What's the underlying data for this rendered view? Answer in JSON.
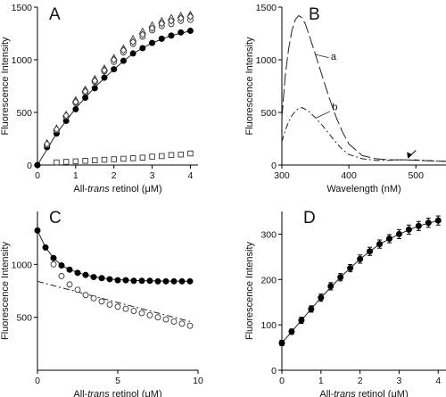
{
  "chart_data": [
    {
      "panel": "A",
      "type": "scatter",
      "xlabel_prefix": "All-",
      "xlabel_italic": "trans",
      "xlabel_suffix": " retinol (μM)",
      "ylabel": "Fluorescence Intensity",
      "xlim": [
        0,
        4.2
      ],
      "ylim": [
        0,
        1500
      ],
      "xticks": [
        0,
        1,
        2,
        3,
        4
      ],
      "yticks": [
        0,
        500,
        1000,
        1500
      ],
      "series": [
        {
          "marker": "filled-circle",
          "x": [
            0,
            0.25,
            0.5,
            0.75,
            1.0,
            1.25,
            1.5,
            1.75,
            2.0,
            2.25,
            2.5,
            2.75,
            3.0,
            3.25,
            3.5,
            3.75,
            4.0
          ],
          "values": [
            0,
            170,
            300,
            420,
            530,
            640,
            730,
            830,
            910,
            990,
            1060,
            1110,
            1160,
            1200,
            1230,
            1260,
            1275
          ]
        },
        {
          "marker": "open-circle",
          "x": [
            0.25,
            0.5,
            0.75,
            1.0,
            1.25,
            1.5,
            1.75,
            2.0,
            2.25,
            2.5,
            2.75,
            3.0,
            3.25,
            3.5,
            3.75,
            4.0
          ],
          "values": [
            190,
            330,
            460,
            590,
            690,
            790,
            890,
            980,
            1070,
            1150,
            1220,
            1280,
            1320,
            1340,
            1370,
            1380
          ]
        },
        {
          "marker": "open-triangle",
          "x": [
            0.25,
            0.5,
            0.75,
            1.0,
            1.25,
            1.5,
            1.75,
            2.0,
            2.25,
            2.5,
            2.75,
            3.0,
            3.25,
            3.5,
            3.75,
            4.0
          ],
          "values": [
            210,
            350,
            480,
            620,
            720,
            820,
            920,
            1020,
            1110,
            1200,
            1270,
            1330,
            1370,
            1400,
            1420,
            1430
          ]
        },
        {
          "marker": "open-diamond",
          "x": [
            0.25,
            0.5,
            0.75,
            1.0,
            1.25,
            1.5,
            1.75,
            2.0,
            2.25,
            2.5,
            2.75,
            3.0,
            3.25,
            3.5,
            3.75,
            4.0
          ],
          "values": [
            200,
            340,
            470,
            600,
            700,
            800,
            900,
            1000,
            1090,
            1170,
            1240,
            1300,
            1345,
            1370,
            1395,
            1410
          ]
        },
        {
          "marker": "open-square",
          "x": [
            0.5,
            0.75,
            1.0,
            1.25,
            1.5,
            1.75,
            2.0,
            2.25,
            2.5,
            2.75,
            3.0,
            3.25,
            3.5,
            3.75,
            4.0
          ],
          "values": [
            25,
            30,
            35,
            40,
            45,
            50,
            55,
            60,
            65,
            70,
            80,
            85,
            95,
            100,
            110
          ]
        }
      ],
      "fit": {
        "style": "solid",
        "x": [
          0,
          0.5,
          1,
          1.5,
          2,
          2.5,
          3,
          3.5,
          4
        ],
        "values": [
          0,
          300,
          540,
          740,
          910,
          1060,
          1160,
          1230,
          1275
        ]
      }
    },
    {
      "panel": "B",
      "type": "line",
      "xlabel": "Wavelength (nM)",
      "ylabel": "Fluorescence Intensity",
      "xlim": [
        300,
        545
      ],
      "ylim": [
        0,
        1500
      ],
      "xticks": [
        300,
        400,
        500
      ],
      "yticks": [
        0,
        500,
        1000,
        1500
      ],
      "series": [
        {
          "name": "a",
          "style": "long-dash",
          "x": [
            300,
            305,
            310,
            315,
            320,
            325,
            330,
            335,
            340,
            345,
            350,
            360,
            370,
            380,
            390,
            400,
            420,
            440,
            460,
            480,
            500,
            520,
            545
          ],
          "values": [
            450,
            850,
            1100,
            1280,
            1380,
            1420,
            1400,
            1340,
            1250,
            1150,
            1050,
            850,
            650,
            470,
            320,
            200,
            90,
            60,
            50,
            50,
            45,
            40,
            35
          ]
        },
        {
          "name": "b",
          "style": "dash-dot",
          "x": [
            300,
            305,
            310,
            315,
            320,
            325,
            330,
            335,
            340,
            345,
            350,
            360,
            370,
            380,
            390,
            400,
            420,
            440,
            460,
            480,
            500,
            520,
            545
          ],
          "values": [
            220,
            330,
            410,
            470,
            510,
            540,
            545,
            530,
            510,
            480,
            450,
            380,
            300,
            220,
            150,
            100,
            60,
            45,
            45,
            50,
            48,
            42,
            35
          ]
        }
      ]
    },
    {
      "panel": "C",
      "type": "scatter",
      "xlabel_prefix": "All-",
      "xlabel_italic": "trans",
      "xlabel_suffix": " retinol (μM)",
      "ylabel": "Fluorescence Intensity",
      "xlim": [
        0,
        10
      ],
      "ylim": [
        0,
        1500
      ],
      "xticks": [
        0,
        5,
        10
      ],
      "yticks": [
        500,
        1000
      ],
      "series": [
        {
          "marker": "filled-circle",
          "x": [
            0,
            0.5,
            1,
            1.5,
            2,
            2.5,
            3,
            3.5,
            4,
            4.5,
            5,
            5.5,
            6,
            6.5,
            7,
            7.5,
            8,
            8.5,
            9,
            9.5
          ],
          "values": [
            1320,
            1160,
            1060,
            990,
            950,
            920,
            900,
            880,
            870,
            860,
            850,
            850,
            845,
            845,
            845,
            840,
            840,
            840,
            840,
            840
          ]
        },
        {
          "marker": "open-circle",
          "x": [
            1,
            1.5,
            2,
            2.5,
            3,
            3.5,
            4,
            4.5,
            5,
            5.5,
            6,
            6.5,
            7,
            7.5,
            8,
            8.5,
            9,
            9.5
          ],
          "values": [
            1000,
            890,
            810,
            760,
            710,
            680,
            650,
            620,
            600,
            580,
            560,
            540,
            520,
            500,
            480,
            460,
            440,
            420
          ]
        }
      ],
      "fits": [
        {
          "style": "solid",
          "x": [
            0,
            0.5,
            1,
            1.5,
            2,
            3,
            4,
            5,
            6,
            7,
            8,
            9,
            9.5
          ],
          "values": [
            1320,
            1160,
            1060,
            990,
            950,
            900,
            870,
            855,
            848,
            844,
            842,
            840,
            840
          ]
        },
        {
          "style": "dash-dot",
          "x": [
            0,
            1,
            2,
            3,
            4,
            5,
            6,
            7,
            8,
            9,
            9.5
          ],
          "values": [
            840,
            800,
            760,
            720,
            680,
            640,
            600,
            560,
            520,
            480,
            460
          ]
        }
      ]
    },
    {
      "panel": "D",
      "type": "scatter",
      "xlabel_prefix": "All-",
      "xlabel_italic": "trans",
      "xlabel_suffix": " retinol (μM)",
      "ylabel": "Fluorescence Intensity",
      "xlim": [
        0,
        4.2
      ],
      "ylim": [
        0,
        350
      ],
      "xticks": [
        0,
        1,
        2,
        3,
        4
      ],
      "yticks": [
        0,
        100,
        200,
        300
      ],
      "series": [
        {
          "marker": "filled-circle-errorbar",
          "x": [
            0,
            0.25,
            0.5,
            0.75,
            1.0,
            1.25,
            1.5,
            1.75,
            2.0,
            2.25,
            2.5,
            2.75,
            3.0,
            3.25,
            3.5,
            3.75,
            4.0
          ],
          "values": [
            60,
            85,
            110,
            135,
            160,
            185,
            205,
            225,
            245,
            262,
            278,
            290,
            300,
            310,
            318,
            325,
            330
          ],
          "errors": [
            6,
            6,
            7,
            7,
            8,
            8,
            8,
            8,
            9,
            9,
            9,
            9,
            10,
            10,
            10,
            10,
            10
          ]
        }
      ],
      "fit": {
        "style": "solid",
        "x": [
          0,
          0.5,
          1,
          1.5,
          2,
          2.5,
          3,
          3.5,
          4
        ],
        "values": [
          60,
          110,
          160,
          205,
          245,
          278,
          300,
          318,
          330
        ]
      }
    }
  ]
}
